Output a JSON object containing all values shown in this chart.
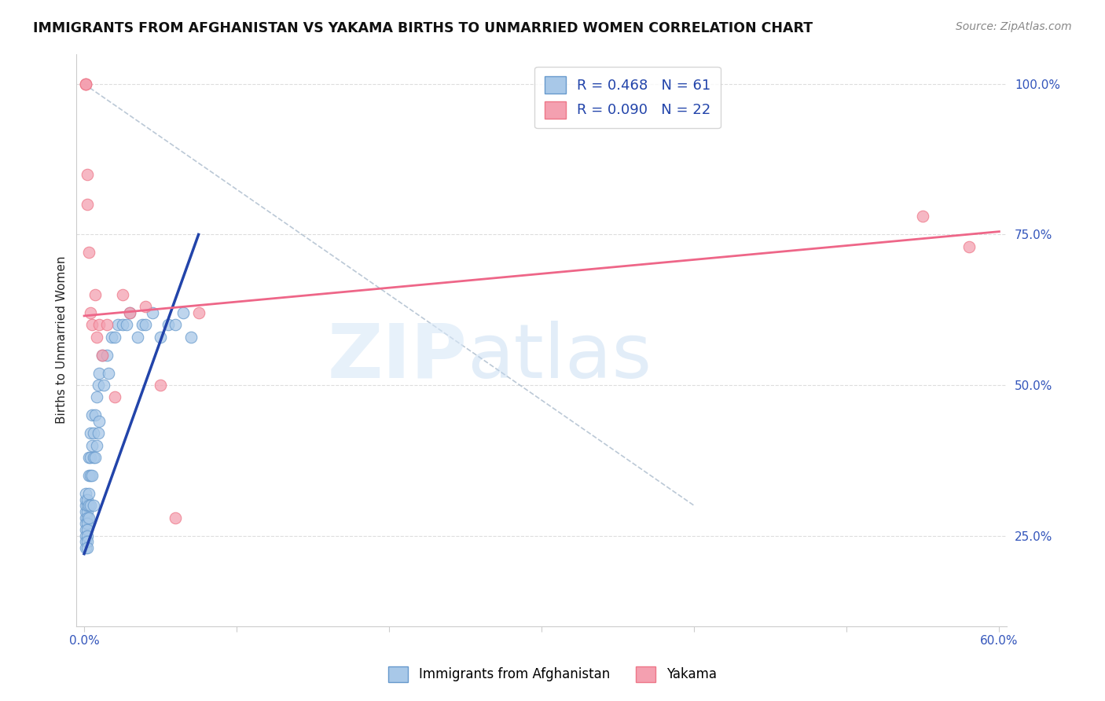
{
  "title": "IMMIGRANTS FROM AFGHANISTAN VS YAKAMA BIRTHS TO UNMARRIED WOMEN CORRELATION CHART",
  "source": "Source: ZipAtlas.com",
  "ylabel": "Births to Unmarried Women",
  "x_label_bottom_center": "Immigrants from Afghanistan",
  "x_label_bottom_right": "Yakama",
  "xlim": [
    0.0,
    0.6
  ],
  "ylim": [
    0.1,
    1.05
  ],
  "blue_R": 0.468,
  "blue_N": 61,
  "pink_R": 0.09,
  "pink_N": 22,
  "blue_color": "#a8c8e8",
  "pink_color": "#f4a0b0",
  "blue_edge_color": "#6699cc",
  "pink_edge_color": "#ee7788",
  "blue_line_color": "#2244aa",
  "pink_line_color": "#ee6688",
  "dash_color": "#aabbcc",
  "blue_scatter_x": [
    0.001,
    0.001,
    0.001,
    0.001,
    0.001,
    0.001,
    0.001,
    0.001,
    0.001,
    0.001,
    0.002,
    0.002,
    0.002,
    0.002,
    0.002,
    0.002,
    0.002,
    0.002,
    0.002,
    0.003,
    0.003,
    0.003,
    0.003,
    0.003,
    0.004,
    0.004,
    0.004,
    0.004,
    0.005,
    0.005,
    0.005,
    0.006,
    0.006,
    0.006,
    0.007,
    0.007,
    0.008,
    0.008,
    0.009,
    0.009,
    0.01,
    0.01,
    0.012,
    0.013,
    0.015,
    0.016,
    0.018,
    0.02,
    0.022,
    0.025,
    0.028,
    0.03,
    0.035,
    0.038,
    0.04,
    0.045,
    0.05,
    0.055,
    0.06,
    0.065,
    0.07
  ],
  "blue_scatter_y": [
    0.28,
    0.29,
    0.3,
    0.31,
    0.32,
    0.27,
    0.26,
    0.25,
    0.24,
    0.23,
    0.29,
    0.3,
    0.31,
    0.28,
    0.27,
    0.26,
    0.25,
    0.24,
    0.23,
    0.32,
    0.35,
    0.38,
    0.3,
    0.28,
    0.35,
    0.38,
    0.42,
    0.3,
    0.4,
    0.45,
    0.35,
    0.42,
    0.38,
    0.3,
    0.45,
    0.38,
    0.48,
    0.4,
    0.5,
    0.42,
    0.52,
    0.44,
    0.55,
    0.5,
    0.55,
    0.52,
    0.58,
    0.58,
    0.6,
    0.6,
    0.6,
    0.62,
    0.58,
    0.6,
    0.6,
    0.62,
    0.58,
    0.6,
    0.6,
    0.62,
    0.58
  ],
  "pink_scatter_x": [
    0.001,
    0.001,
    0.001,
    0.002,
    0.002,
    0.003,
    0.004,
    0.005,
    0.007,
    0.008,
    0.01,
    0.012,
    0.015,
    0.02,
    0.025,
    0.03,
    0.04,
    0.05,
    0.06,
    0.075,
    0.55,
    0.58
  ],
  "pink_scatter_y": [
    1.0,
    1.0,
    1.0,
    0.85,
    0.8,
    0.72,
    0.62,
    0.6,
    0.65,
    0.58,
    0.6,
    0.55,
    0.6,
    0.48,
    0.65,
    0.62,
    0.63,
    0.5,
    0.28,
    0.62,
    0.78,
    0.73
  ],
  "blue_line_x": [
    0.0,
    0.075
  ],
  "blue_line_y": [
    0.22,
    0.75
  ],
  "pink_line_x": [
    0.0,
    0.6
  ],
  "pink_line_y": [
    0.615,
    0.755
  ],
  "dash_line_x": [
    0.0,
    0.4
  ],
  "dash_line_y": [
    1.0,
    0.3
  ],
  "watermark_zip": "ZIP",
  "watermark_atlas": "atlas",
  "background_color": "#ffffff",
  "grid_color": "#dddddd",
  "yticks_right": [
    0.25,
    0.5,
    0.75,
    1.0
  ],
  "ytick_right_labels": [
    "25.0%",
    "50.0%",
    "75.0%",
    "100.0%"
  ]
}
